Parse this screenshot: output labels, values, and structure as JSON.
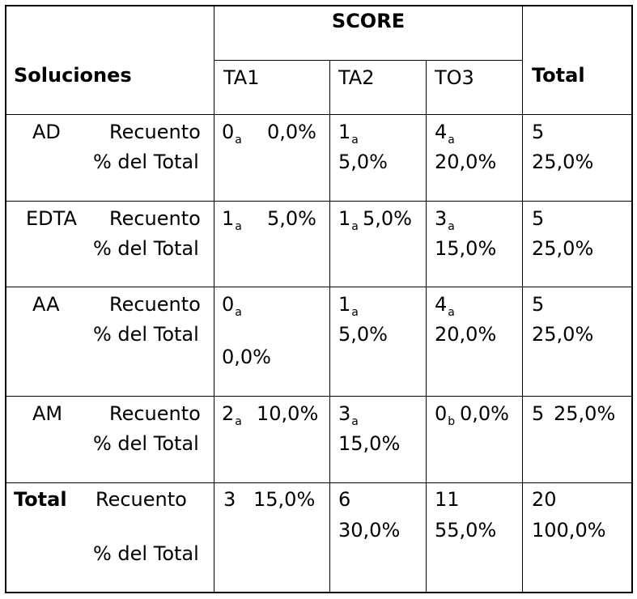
{
  "header": {
    "score": "SCORE",
    "soluciones": "Soluciones",
    "total": "Total",
    "cols": [
      "TA1",
      "TA2",
      "TO3"
    ]
  },
  "labels": {
    "recuento": "Recuento",
    "pct": "% del Total"
  },
  "rows": [
    {
      "name": "AD",
      "ta1": {
        "n": "0",
        "sub": "a",
        "pct": "0,0%"
      },
      "ta2": {
        "n": "1",
        "sub": "a",
        "pct": "5,0%"
      },
      "to3": {
        "n": "4",
        "sub": "a",
        "pct": "20,0%"
      },
      "total": {
        "n": "5",
        "pct": "25,0%"
      }
    },
    {
      "name": "EDTA",
      "ta1": {
        "n": "1",
        "sub": "a",
        "pct": "5,0%"
      },
      "ta2": {
        "n": "1",
        "sub": "a",
        "pct": "5,0%"
      },
      "to3": {
        "n": "3",
        "sub": "a",
        "pct": "15,0%"
      },
      "total": {
        "n": "5",
        "pct": "25,0%"
      }
    },
    {
      "name": "AA",
      "ta1": {
        "n": "0",
        "sub": "a",
        "pct": "0,0%"
      },
      "ta2": {
        "n": "1",
        "sub": "a",
        "pct": "5,0%"
      },
      "to3": {
        "n": "4",
        "sub": "a",
        "pct": "20,0%"
      },
      "total": {
        "n": "5",
        "pct": "25,0%"
      }
    },
    {
      "name": "AM",
      "ta1": {
        "n": "2",
        "sub": "a",
        "pct": "10,0%"
      },
      "ta2": {
        "n": "3",
        "sub": "a",
        "pct": "15,0%"
      },
      "to3": {
        "n": "0",
        "sub": "b",
        "pct": "0,0%"
      },
      "total": {
        "n": "5",
        "pct": "25,0%"
      }
    }
  ],
  "total_row": {
    "name": "Total",
    "ta1": {
      "n": "3",
      "pct": "15,0%"
    },
    "ta2": {
      "n": "6",
      "pct": "30,0%"
    },
    "to3": {
      "n": "11",
      "pct": "55,0%"
    },
    "total": {
      "n": "20",
      "pct": "100,0%"
    }
  }
}
